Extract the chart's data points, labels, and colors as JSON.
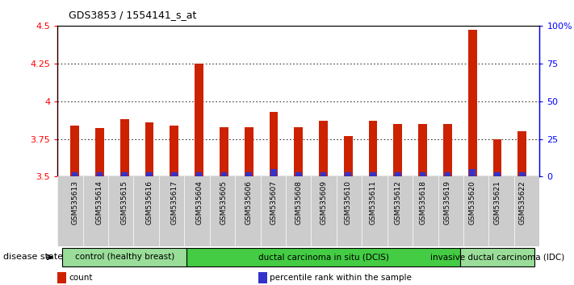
{
  "title": "GDS3853 / 1554141_s_at",
  "samples": [
    "GSM535613",
    "GSM535614",
    "GSM535615",
    "GSM535616",
    "GSM535617",
    "GSM535604",
    "GSM535605",
    "GSM535606",
    "GSM535607",
    "GSM535608",
    "GSM535609",
    "GSM535610",
    "GSM535611",
    "GSM535612",
    "GSM535618",
    "GSM535619",
    "GSM535620",
    "GSM535621",
    "GSM535622"
  ],
  "counts": [
    3.84,
    3.82,
    3.88,
    3.86,
    3.84,
    4.25,
    3.83,
    3.83,
    3.93,
    3.83,
    3.87,
    3.77,
    3.87,
    3.85,
    3.85,
    3.85,
    4.47,
    3.75,
    3.8
  ],
  "percentiles": [
    3,
    3,
    3,
    3,
    3,
    3,
    3,
    3,
    5,
    3,
    3,
    3,
    3,
    3,
    3,
    3,
    5,
    3,
    3
  ],
  "ylim_left": [
    3.5,
    4.5
  ],
  "ylim_right": [
    0,
    100
  ],
  "yticks_left": [
    3.5,
    3.75,
    4.0,
    4.25,
    4.5
  ],
  "ytick_labels_left": [
    "3.5",
    "3.75",
    "4",
    "4.25",
    "4.5"
  ],
  "yticks_right": [
    0,
    25,
    50,
    75,
    100
  ],
  "ytick_labels_right": [
    "0",
    "25",
    "50",
    "75",
    "100%"
  ],
  "bar_color_red": "#cc2200",
  "bar_color_blue": "#3333cc",
  "bar_width": 0.35,
  "blue_bar_width": 0.25,
  "groups": [
    {
      "label": "control (healthy breast)",
      "start": 0,
      "end": 5,
      "color": "#99dd99"
    },
    {
      "label": "ductal carcinoma in situ (DCIS)",
      "start": 5,
      "end": 16,
      "color": "#44cc44"
    },
    {
      "label": "invasive ductal carcinoma (IDC)",
      "start": 16,
      "end": 19,
      "color": "#99dd99"
    }
  ],
  "disease_state_label": "disease state",
  "legend_items": [
    {
      "label": "count",
      "color": "#cc2200"
    },
    {
      "label": "percentile rank within the sample",
      "color": "#3333cc"
    }
  ],
  "ybase": 3.5,
  "xtick_bg": "#cccccc",
  "plot_bg": "#ffffff",
  "border_color": "#888888"
}
